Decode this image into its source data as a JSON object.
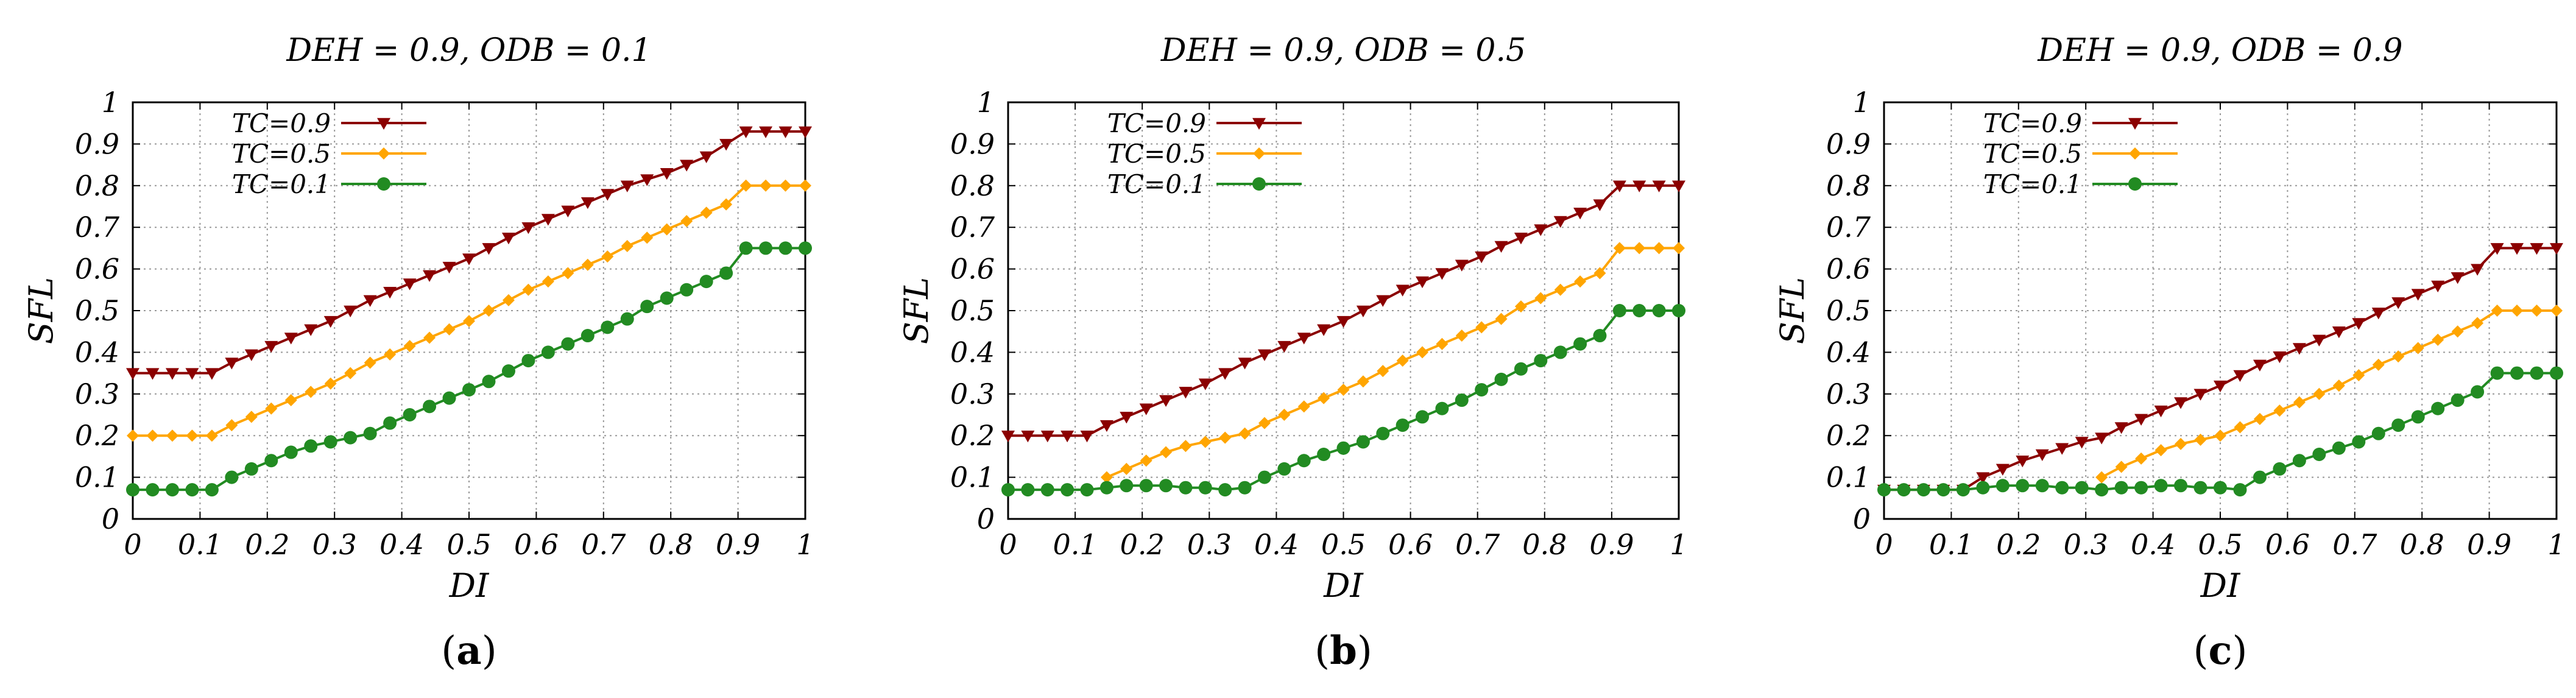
{
  "chart_data": [
    {
      "type": "line",
      "title": "DEH = 0.9, ODB = 0.1",
      "xlabel": "DI",
      "ylabel": "SFL",
      "caption_prefix": "(",
      "caption_letter": "a",
      "caption_suffix": ")",
      "xlim": [
        0,
        1
      ],
      "ylim": [
        0,
        1
      ],
      "xticks": [
        "0",
        "0.1",
        "0.2",
        "0.3",
        "0.4",
        "0.5",
        "0.6",
        "0.7",
        "0.8",
        "0.9",
        "1"
      ],
      "yticks": [
        "0",
        "0.1",
        "0.2",
        "0.3",
        "0.4",
        "0.5",
        "0.6",
        "0.7",
        "0.8",
        "0.9",
        "1"
      ],
      "grid": true,
      "legend_position": "top-left",
      "series": [
        {
          "name": "TC=0.9",
          "color": "#8b0000",
          "marker": "triangle-down",
          "values": [
            0.35,
            0.35,
            0.35,
            0.35,
            0.35,
            0.375,
            0.395,
            0.415,
            0.435,
            0.455,
            0.475,
            0.5,
            0.525,
            0.545,
            0.565,
            0.585,
            0.605,
            0.625,
            0.65,
            0.675,
            0.7,
            0.72,
            0.74,
            0.76,
            0.78,
            0.8,
            0.815,
            0.83,
            0.85,
            0.87,
            0.9,
            0.93,
            0.93,
            0.93,
            0.93
          ]
        },
        {
          "name": "TC=0.5",
          "color": "#ffa500",
          "marker": "diamond",
          "values": [
            0.2,
            0.2,
            0.2,
            0.2,
            0.2,
            0.225,
            0.245,
            0.265,
            0.285,
            0.305,
            0.325,
            0.35,
            0.375,
            0.395,
            0.415,
            0.435,
            0.455,
            0.475,
            0.5,
            0.525,
            0.55,
            0.57,
            0.59,
            0.61,
            0.63,
            0.655,
            0.675,
            0.695,
            0.715,
            0.735,
            0.755,
            0.8,
            0.8,
            0.8,
            0.8
          ]
        },
        {
          "name": "TC=0.1",
          "color": "#228b22",
          "marker": "circle",
          "values": [
            0.07,
            0.07,
            0.07,
            0.07,
            0.07,
            0.1,
            0.12,
            0.14,
            0.16,
            0.175,
            0.185,
            0.195,
            0.205,
            0.23,
            0.25,
            0.27,
            0.29,
            0.31,
            0.33,
            0.355,
            0.38,
            0.4,
            0.42,
            0.44,
            0.46,
            0.48,
            0.51,
            0.53,
            0.55,
            0.57,
            0.59,
            0.65,
            0.65,
            0.65,
            0.65
          ]
        }
      ]
    },
    {
      "type": "line",
      "title": "DEH = 0.9, ODB = 0.5",
      "xlabel": "DI",
      "ylabel": "SFL",
      "caption_prefix": "(",
      "caption_letter": "b",
      "caption_suffix": ")",
      "xlim": [
        0,
        1
      ],
      "ylim": [
        0,
        1
      ],
      "xticks": [
        "0",
        "0.1",
        "0.2",
        "0.3",
        "0.4",
        "0.5",
        "0.6",
        "0.7",
        "0.8",
        "0.9",
        "1"
      ],
      "yticks": [
        "0",
        "0.1",
        "0.2",
        "0.3",
        "0.4",
        "0.5",
        "0.6",
        "0.7",
        "0.8",
        "0.9",
        "1"
      ],
      "grid": true,
      "legend_position": "top-left",
      "series": [
        {
          "name": "TC=0.9",
          "color": "#8b0000",
          "marker": "triangle-down",
          "values": [
            0.2,
            0.2,
            0.2,
            0.2,
            0.2,
            0.225,
            0.245,
            0.265,
            0.285,
            0.305,
            0.325,
            0.35,
            0.375,
            0.395,
            0.415,
            0.435,
            0.455,
            0.475,
            0.5,
            0.525,
            0.55,
            0.57,
            0.59,
            0.61,
            0.63,
            0.655,
            0.675,
            0.695,
            0.715,
            0.735,
            0.755,
            0.8,
            0.8,
            0.8,
            0.8
          ]
        },
        {
          "name": "TC=0.5",
          "color": "#ffa500",
          "marker": "diamond",
          "values": [
            null,
            null,
            null,
            null,
            null,
            0.1,
            0.12,
            0.14,
            0.16,
            0.175,
            0.185,
            0.195,
            0.205,
            0.23,
            0.25,
            0.27,
            0.29,
            0.31,
            0.33,
            0.355,
            0.38,
            0.4,
            0.42,
            0.44,
            0.46,
            0.48,
            0.51,
            0.53,
            0.55,
            0.57,
            0.59,
            0.65,
            0.65,
            0.65,
            0.65
          ]
        },
        {
          "name": "TC=0.1",
          "color": "#228b22",
          "marker": "circle",
          "values": [
            0.07,
            0.07,
            0.07,
            0.07,
            0.07,
            0.075,
            0.08,
            0.08,
            0.08,
            0.075,
            0.075,
            0.07,
            0.075,
            0.1,
            0.12,
            0.14,
            0.155,
            0.17,
            0.185,
            0.205,
            0.225,
            0.245,
            0.265,
            0.285,
            0.31,
            0.335,
            0.36,
            0.38,
            0.4,
            0.42,
            0.44,
            0.5,
            0.5,
            0.5,
            0.5
          ]
        }
      ]
    },
    {
      "type": "line",
      "title": "DEH = 0.9, ODB = 0.9",
      "xlabel": "DI",
      "ylabel": "SFL",
      "caption_prefix": "(",
      "caption_letter": "c",
      "caption_suffix": ")",
      "xlim": [
        0,
        1
      ],
      "ylim": [
        0,
        1
      ],
      "xticks": [
        "0",
        "0.1",
        "0.2",
        "0.3",
        "0.4",
        "0.5",
        "0.6",
        "0.7",
        "0.8",
        "0.9",
        "1"
      ],
      "yticks": [
        "0",
        "0.1",
        "0.2",
        "0.3",
        "0.4",
        "0.5",
        "0.6",
        "0.7",
        "0.8",
        "0.9",
        "1"
      ],
      "grid": true,
      "legend_position": "top-left",
      "series": [
        {
          "name": "TC=0.9",
          "color": "#8b0000",
          "marker": "triangle-down",
          "values": [
            0.07,
            0.07,
            0.07,
            0.07,
            0.07,
            0.1,
            0.12,
            0.14,
            0.155,
            0.17,
            0.185,
            0.195,
            0.22,
            0.24,
            0.26,
            0.28,
            0.3,
            0.32,
            0.345,
            0.37,
            0.39,
            0.41,
            0.43,
            0.45,
            0.47,
            0.495,
            0.52,
            0.54,
            0.56,
            0.58,
            0.6,
            0.65,
            0.65,
            0.65,
            0.65
          ]
        },
        {
          "name": "TC=0.5",
          "color": "#ffa500",
          "marker": "diamond",
          "values": [
            null,
            null,
            null,
            null,
            null,
            null,
            null,
            null,
            null,
            null,
            null,
            0.1,
            0.125,
            0.145,
            0.165,
            0.18,
            0.19,
            0.2,
            0.22,
            0.24,
            0.26,
            0.28,
            0.3,
            0.32,
            0.345,
            0.37,
            0.39,
            0.41,
            0.43,
            0.45,
            0.47,
            0.5,
            0.5,
            0.5,
            0.5
          ]
        },
        {
          "name": "TC=0.1",
          "color": "#228b22",
          "marker": "circle",
          "values": [
            0.07,
            0.07,
            0.07,
            0.07,
            0.07,
            0.075,
            0.08,
            0.08,
            0.08,
            0.075,
            0.075,
            0.07,
            0.075,
            0.075,
            0.08,
            0.08,
            0.075,
            0.075,
            0.07,
            0.1,
            0.12,
            0.14,
            0.155,
            0.17,
            0.185,
            0.205,
            0.225,
            0.245,
            0.265,
            0.285,
            0.305,
            0.35,
            0.35,
            0.35,
            0.35
          ]
        }
      ]
    }
  ]
}
